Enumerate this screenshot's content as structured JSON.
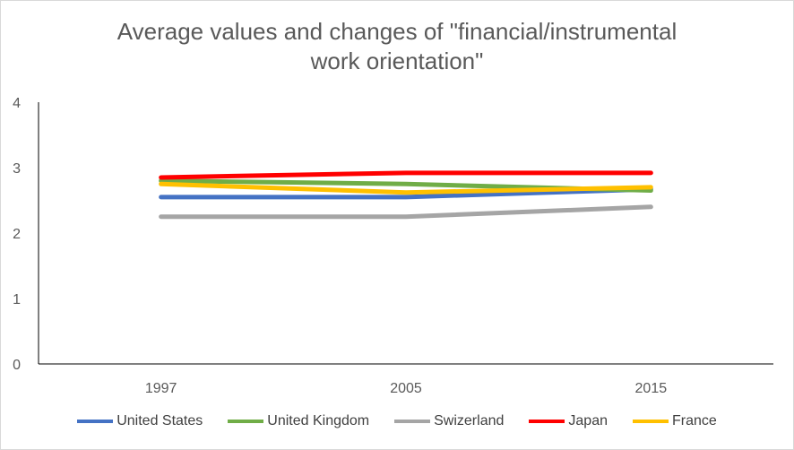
{
  "chart_data": {
    "type": "line",
    "title_line1": "Average values and changes of \"financial/instrumental",
    "title_line2": "work orientation\"",
    "categories": [
      "1997",
      "2005",
      "2015"
    ],
    "ylim": [
      0,
      4
    ],
    "yticks": [
      "0",
      "1",
      "2",
      "3",
      "4"
    ],
    "grid": false,
    "legend_position": "bottom",
    "series": [
      {
        "name": "United States",
        "color": "#4472c4",
        "values": [
          2.55,
          2.55,
          2.67
        ]
      },
      {
        "name": "United Kingdom",
        "color": "#70ad47",
        "values": [
          2.8,
          2.75,
          2.65
        ]
      },
      {
        "name": "Swizerland",
        "color": "#a5a5a5",
        "values": [
          2.25,
          2.25,
          2.4
        ]
      },
      {
        "name": "Japan",
        "color": "#ff0000",
        "values": [
          2.85,
          2.92,
          2.92
        ]
      },
      {
        "name": "France",
        "color": "#ffc000",
        "values": [
          2.75,
          2.62,
          2.7
        ]
      }
    ]
  }
}
